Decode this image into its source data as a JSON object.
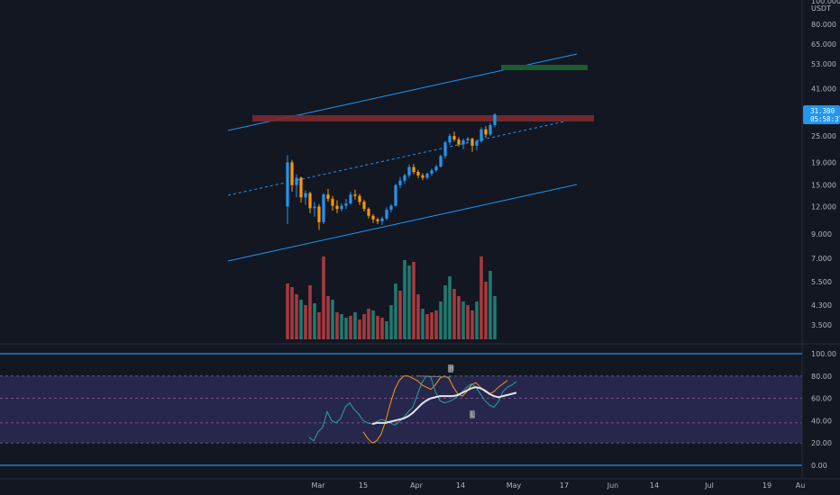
{
  "colors": {
    "background": "#131722",
    "up": "#26a69a",
    "down": "#ef5350",
    "candle_up": "#2196f3",
    "candle_down": "#ff9800",
    "channel": "#2196f3",
    "resistance": "#7b2a2e",
    "target": "#1e5a30",
    "price_tag": "#2196f3",
    "rsi_band": "#2b2a55",
    "rsi_line": "#26a69a",
    "rsi_ma": "#e0e3eb",
    "rsi_overbought": "#ff9800",
    "divergence": "#787b86"
  },
  "price_axis": {
    "unit": "USDT",
    "ticks": [
      "100.000",
      "80.000",
      "65.000",
      "53.000",
      "41.000",
      "25.000",
      "19.000",
      "15.000",
      "12.000",
      "9.000",
      "7.000",
      "5.500",
      "4.300",
      "3.500"
    ],
    "top_partial": "100.000"
  },
  "price_tag": {
    "price": "31.300",
    "countdown": "05:58:37"
  },
  "rsi_axis": {
    "ticks": [
      "100.00",
      "80.00",
      "60.00",
      "40.00",
      "20.00",
      "0.00"
    ]
  },
  "time_axis": {
    "ticks": [
      "Mar",
      "15",
      "Apr",
      "14",
      "May",
      "17",
      "Jun",
      "14",
      "Jul",
      "19",
      "Au"
    ]
  },
  "markers": {
    "high_label": "H",
    "low_label": "L"
  },
  "chart_data": [
    {
      "type": "candlestick",
      "yscale": "log",
      "ylim": [
        3.2,
        100
      ],
      "ohlc": [
        [
          12.0,
          20.5,
          10.0,
          19.0
        ],
        [
          19.0,
          19.5,
          14.0,
          15.0
        ],
        [
          15.0,
          16.8,
          13.2,
          16.2
        ],
        [
          16.2,
          16.4,
          12.5,
          13.2
        ],
        [
          13.2,
          14.2,
          12.2,
          13.8
        ],
        [
          13.8,
          14.0,
          11.2,
          11.8
        ],
        [
          11.8,
          12.6,
          10.8,
          12.0
        ],
        [
          12.0,
          12.3,
          9.4,
          10.2
        ],
        [
          10.2,
          13.8,
          10.0,
          13.6
        ],
        [
          13.6,
          14.4,
          12.6,
          13.0
        ],
        [
          13.0,
          13.4,
          11.5,
          12.1
        ],
        [
          12.1,
          12.8,
          11.2,
          11.7
        ],
        [
          11.7,
          12.4,
          11.4,
          12.1
        ],
        [
          12.1,
          13.0,
          11.7,
          12.4
        ],
        [
          12.4,
          14.0,
          12.2,
          13.6
        ],
        [
          13.6,
          14.3,
          12.9,
          13.4
        ],
        [
          13.4,
          13.7,
          12.2,
          12.6
        ],
        [
          12.6,
          12.9,
          11.4,
          11.7
        ],
        [
          11.7,
          11.9,
          10.6,
          10.9
        ],
        [
          10.9,
          11.1,
          10.1,
          10.5
        ],
        [
          10.5,
          10.7,
          10.0,
          10.3
        ],
        [
          10.3,
          10.8,
          9.9,
          10.6
        ],
        [
          10.6,
          11.9,
          10.4,
          11.6
        ],
        [
          11.6,
          12.3,
          11.3,
          12.1
        ],
        [
          12.1,
          15.2,
          12.0,
          15.0
        ],
        [
          15.0,
          16.3,
          14.5,
          15.7
        ],
        [
          15.7,
          16.9,
          15.2,
          16.6
        ],
        [
          16.6,
          18.6,
          16.2,
          18.1
        ],
        [
          18.1,
          18.7,
          16.8,
          17.2
        ],
        [
          17.2,
          17.6,
          16.1,
          16.6
        ],
        [
          16.6,
          17.0,
          15.8,
          16.2
        ],
        [
          16.2,
          17.1,
          15.9,
          16.9
        ],
        [
          16.9,
          17.8,
          16.5,
          17.5
        ],
        [
          17.5,
          18.6,
          17.2,
          18.2
        ],
        [
          18.2,
          20.6,
          18.0,
          20.3
        ],
        [
          20.3,
          23.8,
          19.8,
          23.4
        ],
        [
          23.4,
          25.6,
          22.8,
          25.0
        ],
        [
          25.0,
          26.2,
          23.6,
          24.1
        ],
        [
          24.1,
          24.7,
          22.4,
          22.9
        ],
        [
          22.9,
          24.4,
          21.8,
          23.9
        ],
        [
          23.9,
          24.8,
          23.1,
          24.3
        ],
        [
          24.3,
          24.6,
          21.2,
          22.6
        ],
        [
          22.6,
          24.1,
          21.5,
          23.7
        ],
        [
          23.7,
          27.4,
          23.3,
          26.8
        ],
        [
          26.8,
          27.7,
          24.5,
          25.4
        ],
        [
          25.4,
          28.6,
          25.0,
          28.0
        ],
        [
          28.0,
          31.7,
          27.4,
          31.3
        ]
      ]
    },
    {
      "type": "bar",
      "name": "volume",
      "values": [
        62,
        58,
        50,
        44,
        38,
        60,
        40,
        30,
        92,
        48,
        44,
        30,
        28,
        24,
        26,
        30,
        22,
        28,
        34,
        32,
        26,
        24,
        20,
        38,
        62,
        54,
        88,
        82,
        86,
        50,
        34,
        28,
        30,
        32,
        42,
        60,
        70,
        56,
        48,
        42,
        38,
        32,
        42,
        92,
        64,
        76,
        48
      ],
      "down": [
        1,
        1,
        1,
        0,
        1,
        1,
        0,
        1,
        1,
        1,
        0,
        1,
        0,
        0,
        1,
        0,
        1,
        1,
        1,
        0,
        1,
        1,
        0,
        0,
        0,
        1,
        0,
        0,
        1,
        1,
        0,
        1,
        1,
        1,
        0,
        0,
        0,
        1,
        1,
        0,
        1,
        1,
        0,
        1,
        1,
        0,
        0
      ]
    },
    {
      "type": "line",
      "name": "rsi",
      "ylim": [
        0,
        100
      ],
      "bands": {
        "upper": 80,
        "lower": 20,
        "mid": 60,
        "mid2": 38
      },
      "lines": {
        "rsi": [
          25,
          22,
          30,
          34,
          48,
          40,
          38,
          42,
          52,
          56,
          50,
          46,
          40,
          38,
          37,
          39,
          41,
          40,
          38,
          36,
          39,
          43,
          48,
          52,
          63,
          74,
          80,
          79,
          66,
          58,
          56,
          57,
          59,
          62,
          66,
          70,
          73,
          70,
          64,
          58,
          54,
          52,
          57,
          66,
          70,
          72,
          75
        ],
        "rsi_ma": [
          null,
          null,
          null,
          null,
          null,
          null,
          null,
          null,
          null,
          null,
          null,
          null,
          null,
          null,
          37,
          38,
          38,
          38,
          39,
          40,
          41,
          42,
          44,
          47,
          51,
          55,
          58,
          60,
          61,
          62,
          62,
          62,
          62,
          63,
          65,
          67,
          69,
          70,
          69,
          67,
          64,
          62,
          61,
          62,
          63,
          64,
          65
        ],
        "rsi_smooth": [
          null,
          null,
          null,
          null,
          null,
          null,
          null,
          null,
          null,
          null,
          null,
          null,
          null,
          null,
          30,
          24,
          20,
          22,
          28,
          40,
          55,
          68,
          76,
          80,
          80,
          78,
          76,
          72,
          70,
          68,
          72,
          78,
          80,
          78,
          70,
          64,
          62,
          66,
          72,
          74,
          70,
          66,
          64,
          66,
          70,
          73,
          76
        ]
      }
    }
  ]
}
